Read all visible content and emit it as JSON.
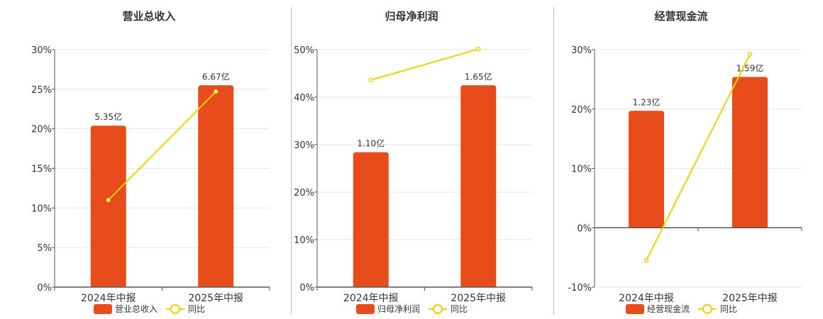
{
  "chart_data": [
    {
      "type": "bar",
      "title": "营业总收入",
      "categories": [
        "2024年中报",
        "2025年中报"
      ],
      "series": [
        {
          "name": "营业总收入",
          "type": "bar",
          "values": [
            20.4,
            25.5
          ],
          "labels": [
            "5.35亿",
            "6.67亿"
          ]
        },
        {
          "name": "同比",
          "type": "line",
          "values": [
            11.0,
            24.7
          ]
        }
      ],
      "ylim": [
        0,
        30
      ],
      "yticks": [
        "0%",
        "5%",
        "10%",
        "15%",
        "20%",
        "25%",
        "30%"
      ],
      "ytick_values": [
        0,
        5,
        10,
        15,
        20,
        25,
        30
      ],
      "grid": true,
      "legend": "bottom"
    },
    {
      "type": "bar",
      "title": "归母净利润",
      "categories": [
        "2024年中报",
        "2025年中报"
      ],
      "series": [
        {
          "name": "归母净利润",
          "type": "bar",
          "values": [
            28.4,
            42.5
          ],
          "labels": [
            "1.10亿",
            "1.65亿"
          ]
        },
        {
          "name": "同比",
          "type": "line",
          "values": [
            43.6,
            50.1
          ]
        }
      ],
      "ylim": [
        0,
        50
      ],
      "yticks": [
        "0%",
        "10%",
        "20%",
        "30%",
        "40%",
        "50%"
      ],
      "ytick_values": [
        0,
        10,
        20,
        30,
        40,
        50
      ],
      "grid": true,
      "legend": "bottom"
    },
    {
      "type": "bar",
      "title": "经营现金流",
      "categories": [
        "2024年中报",
        "2025年中报"
      ],
      "series": [
        {
          "name": "经营现金流",
          "type": "bar",
          "values": [
            19.7,
            25.4
          ],
          "labels": [
            "1.23亿",
            "1.59亿"
          ]
        },
        {
          "name": "同比",
          "type": "line",
          "values": [
            -5.5,
            29.2
          ]
        }
      ],
      "ylim": [
        -10,
        30
      ],
      "yticks": [
        "-10%",
        "0%",
        "10%",
        "20%",
        "30%"
      ],
      "ytick_values": [
        -10,
        0,
        10,
        20,
        30
      ],
      "grid": true,
      "legend": "bottom"
    }
  ],
  "colors": {
    "bar": "#e84c1a",
    "line": "#f0d000",
    "grid": "#e6e6e6",
    "axis": "#555555",
    "divider": "#bdbdbd"
  }
}
